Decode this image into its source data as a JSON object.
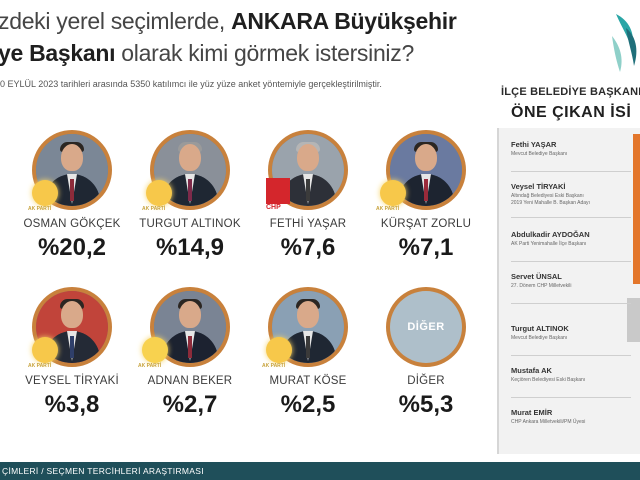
{
  "header": {
    "q_line1_prefix": "zdeki yerel seçimlerde,",
    "q_line1_bold": "ANKARA Büyükşehir",
    "q_line2_bold": "ye Başkanı",
    "q_line2_rest": "olarak kimi görmek istersiniz?",
    "date_note": "0 EYLÜL 2023 tarihleri arasında 5350 katılımcı ile yüz yüze anket yöntemiyle gerçekleştirilmiştir."
  },
  "candidates": [
    {
      "name": "OSMAN GÖKÇEK",
      "pct": "%20,2",
      "party": "AK PARTİ"
    },
    {
      "name": "TURGUT ALTINOK",
      "pct": "%14,9",
      "party": "AK PARTİ"
    },
    {
      "name": "FETHİ YAŞAR",
      "pct": "%7,6",
      "party": "CHP"
    },
    {
      "name": "KÜRŞAT ZORLU",
      "pct": "%7,1",
      "party": "AK PARTİ"
    },
    {
      "name": "VEYSEL TİRYAKİ",
      "pct": "%3,8",
      "party": "AK PARTİ"
    },
    {
      "name": "ADNAN BEKER",
      "pct": "%2,7",
      "party": "AK PARTİ"
    },
    {
      "name": "MURAT KÖSE",
      "pct": "%2,5",
      "party": "AK PARTİ"
    },
    {
      "name": "DİĞER",
      "pct": "%5,3",
      "party": ""
    }
  ],
  "other_circle_label": "DİĞER",
  "right_panel": {
    "title1": "İLÇE BELEDİYE BAŞKANLI",
    "title2": "ÖNE ÇIKAN İSİ",
    "items": [
      {
        "name": "Fethi YAŞAR",
        "desc": "Mevcut Belediye Başkanı"
      },
      {
        "name": "Veysel TİRYAKİ",
        "desc": "Altındağ Belediyesi Eski Başkanı\n2019 Yeni Mahalle B. Başkan Adayı"
      },
      {
        "name": "Abdulkadir AYDOĞAN",
        "desc": "AK Parti Yenimahalle İlçe Başkanı"
      },
      {
        "name": "Servet ÜNSAL",
        "desc": "27. Dönem CHP Milletvekili"
      },
      {
        "name": "Turgut ALTINOK",
        "desc": "Mevcut Belediye Başkanı"
      },
      {
        "name": "Mustafa AK",
        "desc": "Keçiören Belediyesi Eski Başkanı"
      },
      {
        "name": "Murat EMİR",
        "desc": "CHP Ankara Milletvekili/PM Üyesi"
      }
    ]
  },
  "footer": {
    "text": "ÇİMLERİ / SEÇMEN TERCİHLERİ ARAŞTIRMASI"
  },
  "colors": {
    "accent_orange": "#c8813c",
    "footer_teal": "#1f4f5a",
    "strip_orange": "#e3762b",
    "chp_red": "#d4262c",
    "akp_yellow": "#f7c84a"
  }
}
